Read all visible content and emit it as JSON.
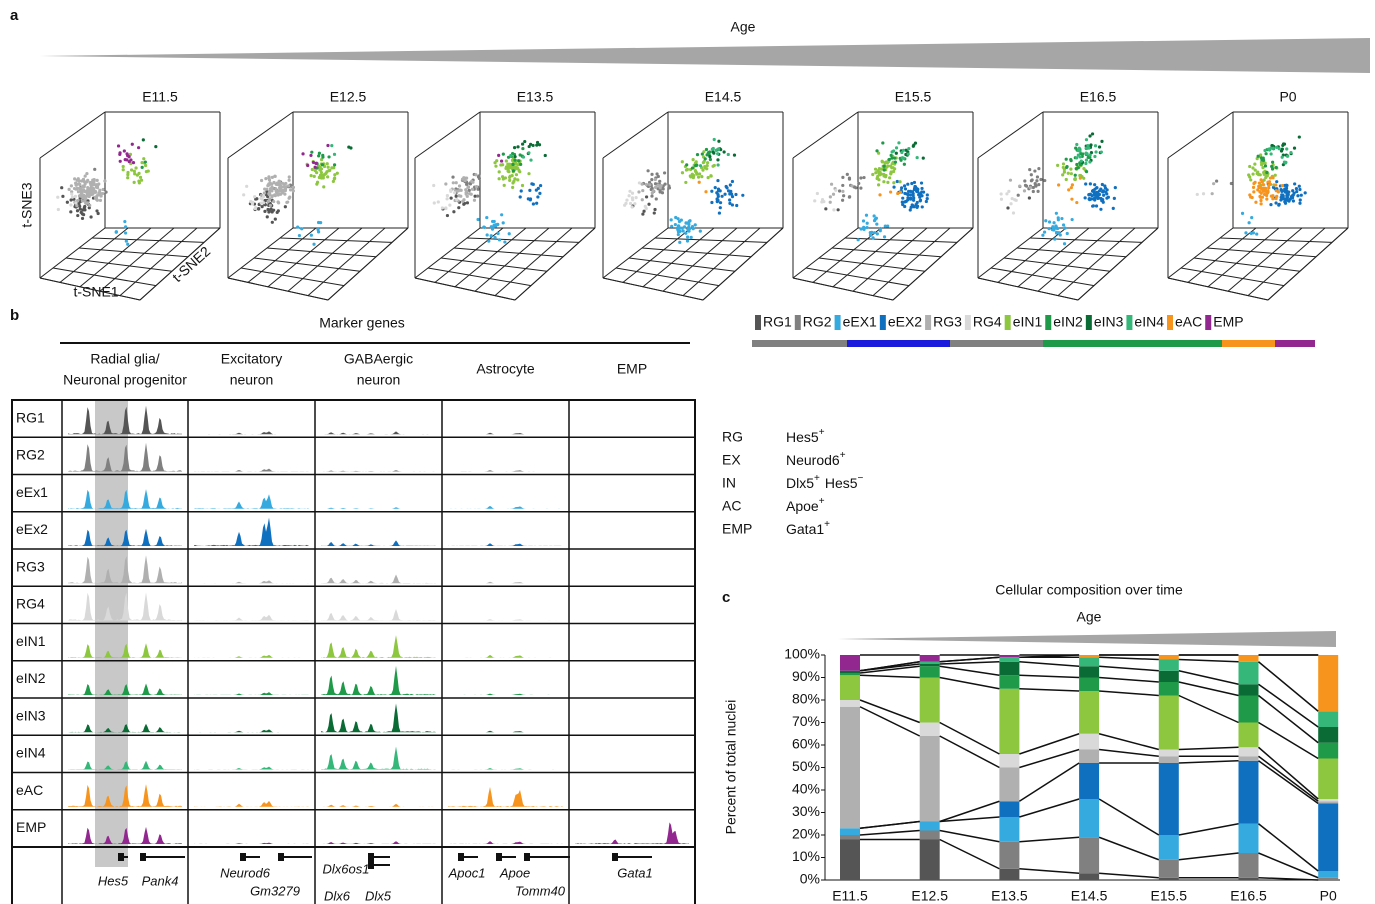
{
  "panel_labels": [
    "a",
    "b",
    "c"
  ],
  "panel_a": {
    "age_label": "Age",
    "timepoints": [
      "E11.5",
      "E12.5",
      "E13.5",
      "E14.5",
      "E15.5",
      "E16.5",
      "P0"
    ],
    "axis_labels": {
      "z": "t-SNE3",
      "y": "t-SNE2",
      "x": "t-SNE1"
    }
  },
  "panel_b": {
    "title": "Marker genes",
    "columns": [
      [
        "Radial glia/",
        "Neuronal progenitor"
      ],
      [
        "Excitatory",
        "neuron"
      ],
      [
        "GABAergic",
        "neuron"
      ],
      [
        "Astrocyte"
      ],
      [
        "EMP"
      ]
    ],
    "rows": [
      "RG1",
      "RG2",
      "eEx1",
      "eEx2",
      "RG3",
      "RG4",
      "eIN1",
      "eIN2",
      "eIN3",
      "eIN4",
      "eAC",
      "EMP"
    ],
    "genes": [
      "Hes5",
      "Pank4",
      "Neurod6",
      "Gm3279",
      "Dlx6os1",
      "Dlx6",
      "Dlx5",
      "Apoc1",
      "Apoe",
      "Tomm40",
      "Gata1"
    ]
  },
  "marker_legend": [
    {
      "abbr": "RG",
      "markers": [
        {
          "gene": "Hes5",
          "sign": "+"
        }
      ]
    },
    {
      "abbr": "EX",
      "markers": [
        {
          "gene": "Neurod6",
          "sign": "+"
        }
      ]
    },
    {
      "abbr": "IN",
      "markers": [
        {
          "gene": "Dlx5",
          "sign": "+"
        },
        {
          "gene": "Hes5",
          "sign": "−"
        }
      ]
    },
    {
      "abbr": "AC",
      "markers": [
        {
          "gene": "Apoe",
          "sign": "+"
        }
      ]
    },
    {
      "abbr": "EMP",
      "markers": [
        {
          "gene": "Gata1",
          "sign": "+"
        }
      ]
    }
  ],
  "chart_data": {
    "type": "stacked_bar",
    "title": "Cellular composition over time",
    "annotation": "Age",
    "y_label": "Percent of total nuclei",
    "categories": [
      "E11.5",
      "E12.5",
      "E13.5",
      "E14.5",
      "E15.5",
      "E16.5",
      "P0"
    ],
    "series": [
      {
        "name": "RG1",
        "color": "#555555",
        "values": [
          18,
          18,
          5,
          3,
          1,
          1,
          0
        ]
      },
      {
        "name": "RG2",
        "color": "#808080",
        "values": [
          2,
          4,
          12,
          16,
          8,
          11,
          1
        ]
      },
      {
        "name": "eEX1",
        "color": "#35aadf",
        "values": [
          3,
          4,
          11,
          17,
          11,
          13,
          3
        ]
      },
      {
        "name": "eEX2",
        "color": "#1070c0",
        "values": [
          0,
          0,
          7,
          16,
          32,
          28,
          30
        ]
      },
      {
        "name": "RG3",
        "color": "#b0b0b0",
        "values": [
          54,
          38,
          15,
          6,
          3,
          2,
          1
        ]
      },
      {
        "name": "RG4",
        "color": "#d9d9d9",
        "values": [
          3,
          6,
          6,
          7,
          3,
          4,
          1
        ]
      },
      {
        "name": "eIN1",
        "color": "#8dc63f",
        "values": [
          11,
          20,
          29,
          19,
          24,
          11,
          18
        ]
      },
      {
        "name": "eIN2",
        "color": "#1e9a48",
        "values": [
          1,
          5,
          6,
          6,
          6,
          12,
          7
        ]
      },
      {
        "name": "eIN3",
        "color": "#0b6b35",
        "values": [
          1,
          1,
          6,
          5,
          5,
          5,
          7
        ]
      },
      {
        "name": "eIN4",
        "color": "#35b779",
        "values": [
          0,
          1,
          2,
          4,
          5,
          10,
          7
        ]
      },
      {
        "name": "eAC",
        "color": "#f7941d",
        "values": [
          0,
          0,
          0,
          1,
          2,
          3,
          25
        ]
      },
      {
        "name": "EMP",
        "color": "#92278f",
        "values": [
          7,
          3,
          1,
          0,
          0,
          0,
          0
        ]
      }
    ],
    "ylim": [
      0,
      100
    ],
    "yticks": [
      {
        "value": 0,
        "label": "0%"
      },
      {
        "value": 10,
        "label": "10%"
      },
      {
        "value": 20,
        "label": "20%"
      },
      {
        "value": 30,
        "label": "30%"
      },
      {
        "value": 40,
        "label": "40%"
      },
      {
        "value": 50,
        "label": "50%"
      },
      {
        "value": 60,
        "label": "60%"
      },
      {
        "value": 70,
        "label": "70%"
      },
      {
        "value": 80,
        "label": "80%"
      },
      {
        "value": 90,
        "label": "90%"
      },
      {
        "value": 100,
        "label": "100%"
      }
    ]
  }
}
